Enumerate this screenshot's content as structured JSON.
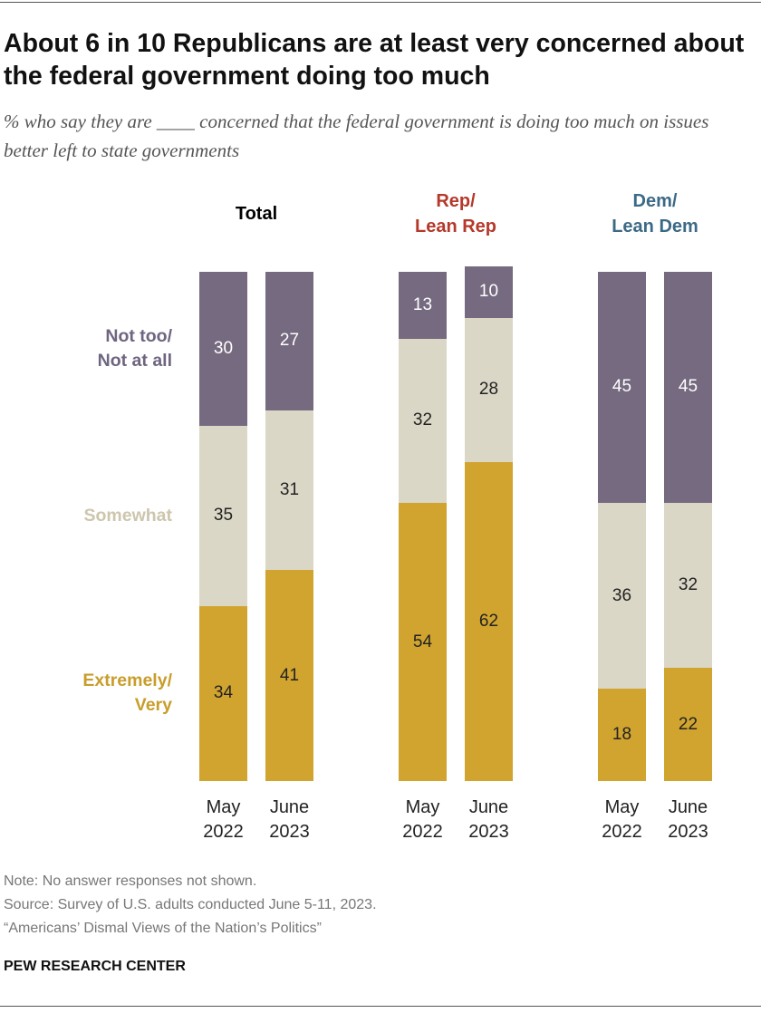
{
  "chart_data": {
    "type": "stacked_bar",
    "title": "About 6 in 10 Republicans are at least very concerned about the federal government doing too much",
    "subtitle": "% who say they are ____ concerned that the federal government is doing too much on issues better left to state governments",
    "groups": [
      {
        "label": "Total",
        "color": "#000000"
      },
      {
        "label": "Rep/\nLean Rep",
        "color": "#b5392b"
      },
      {
        "label": "Dem/\nLean Dem",
        "color": "#3c6a86"
      }
    ],
    "categories": [
      "May\n2022",
      "June\n2023",
      "May\n2022",
      "June\n2023",
      "May\n2022",
      "June\n2023"
    ],
    "series": [
      {
        "name": "Extremely/\nVery",
        "color": "#d1a42f",
        "legend_color": "#c89d2b",
        "label_color": "#222222",
        "values": [
          34,
          41,
          54,
          62,
          18,
          22
        ]
      },
      {
        "name": "Somewhat",
        "color": "#dbd7c7",
        "legend_color": "#cdc6ad",
        "label_color": "#222222",
        "values": [
          35,
          31,
          32,
          28,
          36,
          32
        ]
      },
      {
        "name": "Not too/\nNot at all",
        "color": "#756a7f",
        "legend_color": "#6f6580",
        "label_color": "#ffffff",
        "values": [
          30,
          27,
          13,
          10,
          45,
          45
        ]
      }
    ],
    "notes": [
      "Note: No answer responses not shown.",
      "Source: Survey of U.S. adults conducted June 5-11, 2023.",
      "“Americans’ Dismal Views of the Nation’s Politics”"
    ],
    "brand": "PEW RESEARCH CENTER"
  }
}
